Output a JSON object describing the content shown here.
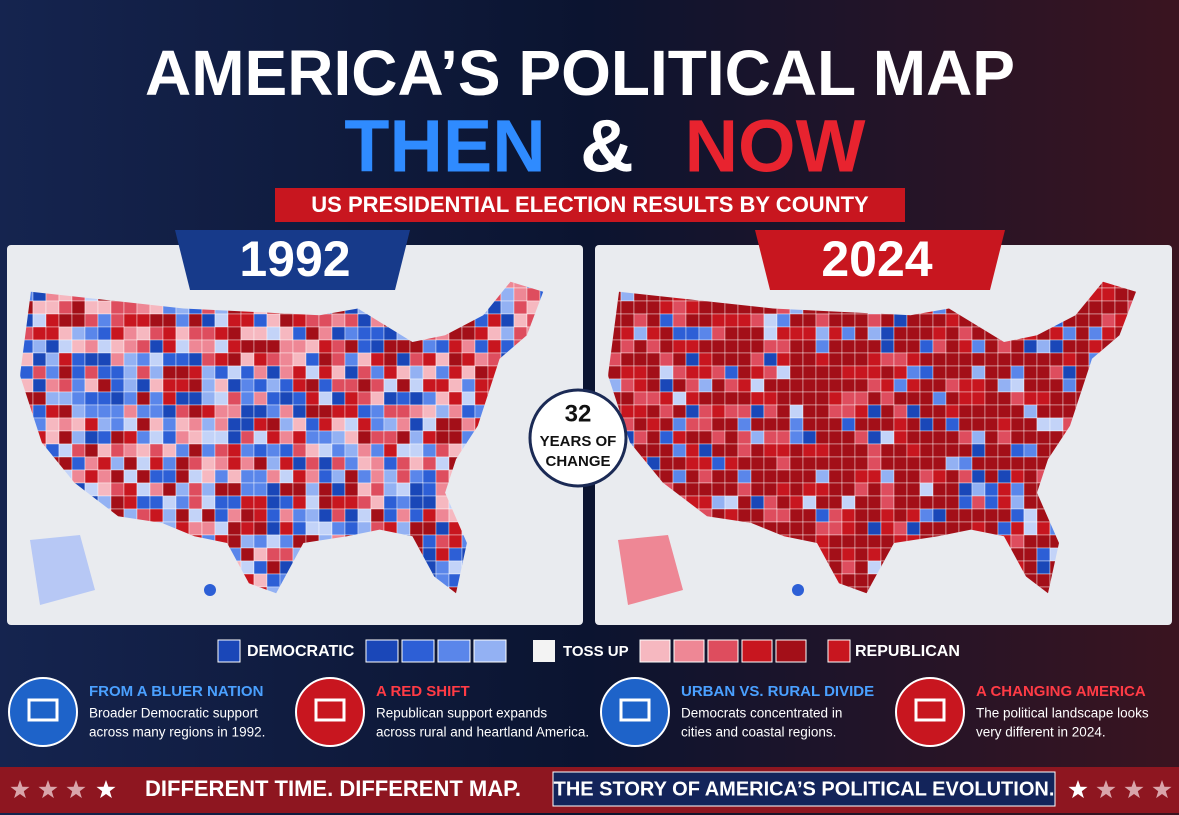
{
  "header": {
    "title": "AMERICA’S POLITICAL MAP",
    "then": "THEN",
    "amp": "&",
    "now": "NOW",
    "banner": "US PRESIDENTIAL ELECTION RESULTS BY COUNTY"
  },
  "panels": [
    {
      "year": "1992"
    },
    {
      "year": "2024"
    }
  ],
  "badge": {
    "number": "32",
    "lines": [
      "YEARS OF",
      "CHANGE"
    ]
  },
  "legend": {
    "democratic": "DEMOCRATIC",
    "toss_up": "TOSS UP",
    "republican": "REPUBLICAN"
  },
  "features": [
    {
      "title": "FROM A BLUER NATION",
      "lines": [
        "Broader Democratic support",
        "across many regions in 1992."
      ]
    },
    {
      "title": "A RED SHIFT",
      "lines": [
        "Republican support expands",
        "across rural and heartland America."
      ]
    },
    {
      "title": "URBAN VS. RURAL DIVIDE",
      "lines": [
        "Democrats concentrated in",
        "cities and coastal regions."
      ]
    },
    {
      "title": "A CHANGING AMERICA",
      "lines": [
        "The political landscape looks",
        "very different in 2024."
      ]
    }
  ],
  "footer": {
    "left": "DIFFERENT TIME. DIFFERENT MAP.",
    "right": "THE STORY OF AMERICA’S POLITICAL EVOLUTION."
  }
}
